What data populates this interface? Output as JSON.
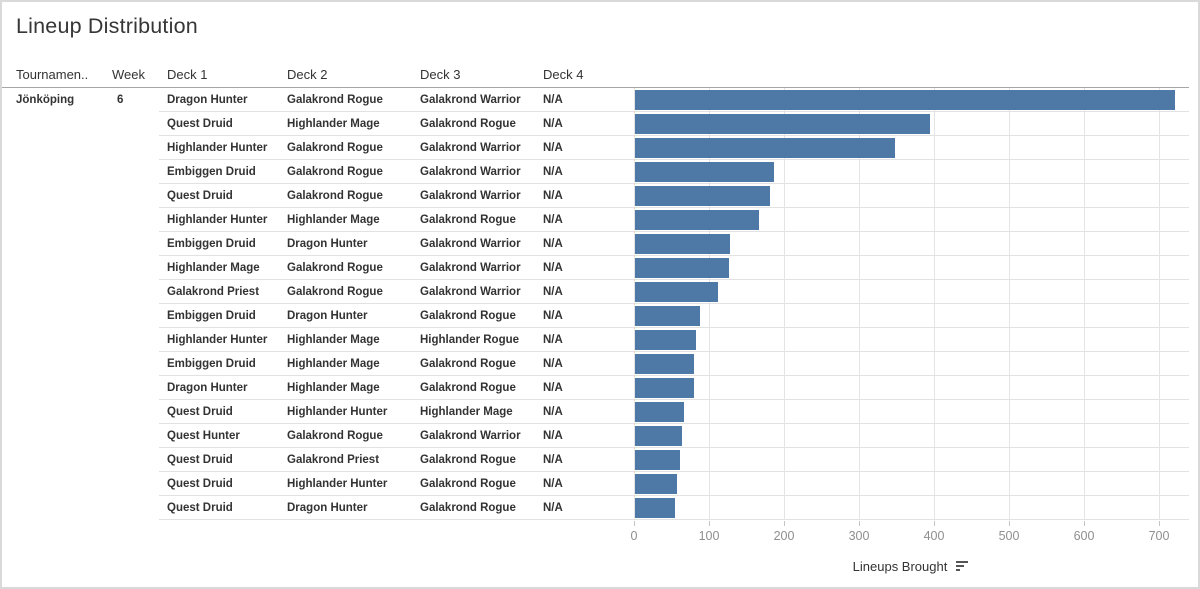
{
  "title": "Lineup Distribution",
  "table": {
    "headers": {
      "tournament": "Tournamen..",
      "week": "Week",
      "deck1": "Deck 1",
      "deck2": "Deck 2",
      "deck3": "Deck 3",
      "deck4": "Deck 4"
    },
    "tournament": "Jönköping",
    "week": "6",
    "rows": [
      {
        "deck1": "Dragon Hunter",
        "deck2": "Galakrond Rogue",
        "deck3": "Galakrond Warrior",
        "deck4": "N/A"
      },
      {
        "deck1": "Quest Druid",
        "deck2": "Highlander Mage",
        "deck3": "Galakrond Rogue",
        "deck4": "N/A"
      },
      {
        "deck1": "Highlander Hunter",
        "deck2": "Galakrond Rogue",
        "deck3": "Galakrond Warrior",
        "deck4": "N/A"
      },
      {
        "deck1": "Embiggen Druid",
        "deck2": "Galakrond Rogue",
        "deck3": "Galakrond Warrior",
        "deck4": "N/A"
      },
      {
        "deck1": "Quest Druid",
        "deck2": "Galakrond Rogue",
        "deck3": "Galakrond Warrior",
        "deck4": "N/A"
      },
      {
        "deck1": "Highlander Hunter",
        "deck2": "Highlander Mage",
        "deck3": "Galakrond Rogue",
        "deck4": "N/A"
      },
      {
        "deck1": "Embiggen Druid",
        "deck2": "Dragon Hunter",
        "deck3": "Galakrond Warrior",
        "deck4": "N/A"
      },
      {
        "deck1": "Highlander Mage",
        "deck2": "Galakrond Rogue",
        "deck3": "Galakrond Warrior",
        "deck4": "N/A"
      },
      {
        "deck1": "Galakrond Priest",
        "deck2": "Galakrond Rogue",
        "deck3": "Galakrond Warrior",
        "deck4": "N/A"
      },
      {
        "deck1": "Embiggen Druid",
        "deck2": "Dragon Hunter",
        "deck3": "Galakrond Rogue",
        "deck4": "N/A"
      },
      {
        "deck1": "Highlander Hunter",
        "deck2": "Highlander Mage",
        "deck3": "Highlander Rogue",
        "deck4": "N/A"
      },
      {
        "deck1": "Embiggen Druid",
        "deck2": "Highlander Mage",
        "deck3": "Galakrond Rogue",
        "deck4": "N/A"
      },
      {
        "deck1": "Dragon Hunter",
        "deck2": "Highlander Mage",
        "deck3": "Galakrond Rogue",
        "deck4": "N/A"
      },
      {
        "deck1": "Quest Druid",
        "deck2": "Highlander Hunter",
        "deck3": "Highlander Mage",
        "deck4": "N/A"
      },
      {
        "deck1": "Quest Hunter",
        "deck2": "Galakrond Rogue",
        "deck3": "Galakrond Warrior",
        "deck4": "N/A"
      },
      {
        "deck1": "Quest Druid",
        "deck2": "Galakrond Priest",
        "deck3": "Galakrond Rogue",
        "deck4": "N/A"
      },
      {
        "deck1": "Quest Druid",
        "deck2": "Highlander Hunter",
        "deck3": "Galakrond Rogue",
        "deck4": "N/A"
      },
      {
        "deck1": "Quest Druid",
        "deck2": "Dragon Hunter",
        "deck3": "Galakrond Rogue",
        "deck4": "N/A"
      }
    ]
  },
  "chart_data": {
    "type": "bar",
    "orientation": "horizontal",
    "title": "Lineup Distribution",
    "xlabel": "Lineups Brought",
    "ylabel": "",
    "xlim": [
      0,
      737
    ],
    "xticks": [
      0,
      100,
      200,
      300,
      400,
      500,
      600,
      700
    ],
    "grid": true,
    "sort": "descending",
    "bar_color": "#4e79a7",
    "categories": [
      "Dragon Hunter / Galakrond Rogue / Galakrond Warrior",
      "Quest Druid / Highlander Mage / Galakrond Rogue",
      "Highlander Hunter / Galakrond Rogue / Galakrond Warrior",
      "Embiggen Druid / Galakrond Rogue / Galakrond Warrior",
      "Quest Druid / Galakrond Rogue / Galakrond Warrior",
      "Highlander Hunter / Highlander Mage / Galakrond Rogue",
      "Embiggen Druid / Dragon Hunter / Galakrond Warrior",
      "Highlander Mage / Galakrond Rogue / Galakrond Warrior",
      "Galakrond Priest / Galakrond Rogue / Galakrond Warrior",
      "Embiggen Druid / Dragon Hunter / Galakrond Rogue",
      "Highlander Hunter / Highlander Mage / Highlander Rogue",
      "Embiggen Druid / Highlander Mage / Galakrond Rogue",
      "Dragon Hunter / Highlander Mage / Galakrond Rogue",
      "Quest Druid / Highlander Hunter / Highlander Mage",
      "Quest Hunter / Galakrond Rogue / Galakrond Warrior",
      "Quest Druid / Galakrond Priest / Galakrond Rogue",
      "Quest Druid / Highlander Hunter / Galakrond Rogue",
      "Quest Druid / Dragon Hunter / Galakrond Rogue"
    ],
    "values": [
      720,
      393,
      347,
      185,
      180,
      165,
      127,
      125,
      110,
      86,
      81,
      79,
      78,
      65,
      62,
      60,
      56,
      53
    ]
  },
  "icons": {
    "sort": "sort-descending-icon"
  },
  "colors": {
    "bar": "#4e79a7",
    "gridline": "#e4e4e4",
    "row_separator": "#e2e2e2",
    "header_underline": "#a6a6a6",
    "tick_text": "#8f8f8f",
    "text": "#333333"
  }
}
